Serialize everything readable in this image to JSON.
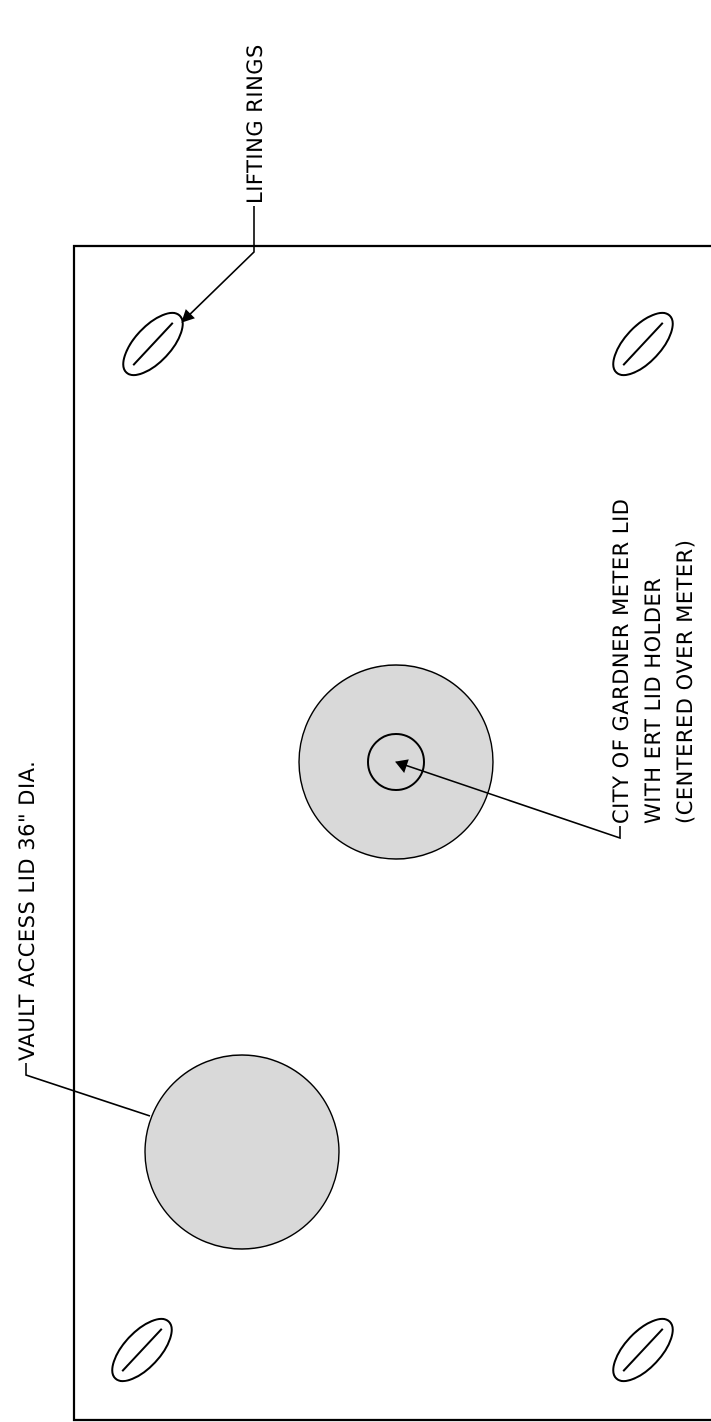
{
  "labels": {
    "lifting_rings": "LIFTING RINGS",
    "vault_access_lid": "VAULT ACCESS LID 36\" DIA.",
    "meter_lid_line1": "CITY OF GARDNER METER LID",
    "meter_lid_line2": "WITH ERT LID HOLDER",
    "meter_lid_line3": "(CENTERED OVER METER)"
  },
  "colors": {
    "lid_fill": "#d9d9d9",
    "line": "#000000",
    "background": "#ffffff"
  }
}
